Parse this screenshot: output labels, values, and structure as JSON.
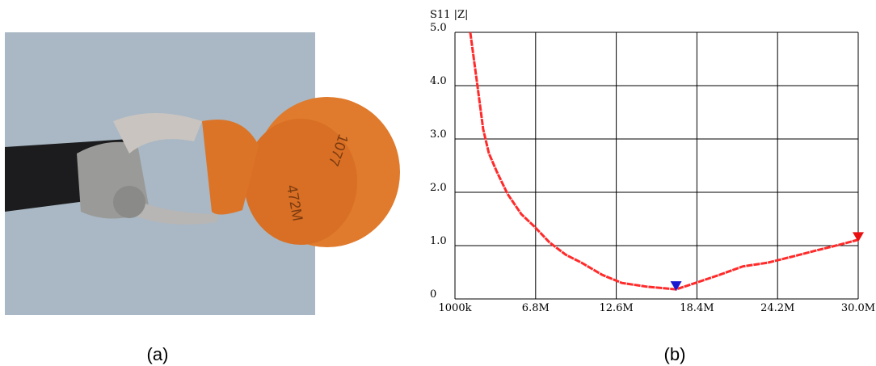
{
  "panel_labels": [
    "(a)",
    "(b)"
  ],
  "chart_data": {
    "type": "line",
    "title": "S11 |Z|",
    "x": [
      2.1,
      2.57,
      3.03,
      3.44,
      4.02,
      4.78,
      5.77,
      6.7,
      7.8,
      8.96,
      10.1,
      11.6,
      13.0,
      14.8,
      16.9,
      18.3,
      20.0,
      21.7,
      23.5,
      25.2,
      27.0,
      28.7,
      30
    ],
    "series": [
      {
        "color": "#ff2a2a",
        "values": [
          5.0,
          4.09,
          3.18,
          2.73,
          2.38,
          1.97,
          1.59,
          1.36,
          1.06,
          0.83,
          0.68,
          0.45,
          0.3,
          0.23,
          0.18,
          0.3,
          0.45,
          0.61,
          0.68,
          0.79,
          0.91,
          1.02,
          1.11
        ]
      }
    ],
    "markers": [
      {
        "x": 16.9,
        "value": 0.18,
        "color": "#1a1ad0"
      },
      {
        "x": 30,
        "value": 1.1,
        "color": "#e81010"
      }
    ],
    "xlim": [
      1,
      30
    ],
    "xticks": [
      {
        "value": 1,
        "label": "1000k"
      },
      {
        "value": 6.8,
        "label": "6.8M"
      },
      {
        "value": 12.6,
        "label": "12.6M"
      },
      {
        "value": 18.4,
        "label": "18.4M"
      },
      {
        "value": 24.2,
        "label": "24.2M"
      },
      {
        "value": 30,
        "label": "30.0M"
      }
    ],
    "ylim": [
      0,
      5
    ],
    "yticks": [
      0,
      {
        "value": 1,
        "label": "1.0"
      },
      {
        "value": 2,
        "label": "2.0"
      },
      {
        "value": 3,
        "label": "3.0"
      },
      {
        "value": 4,
        "label": "4.0"
      },
      {
        "value": 5,
        "label": "5.0"
      }
    ],
    "grid": true
  }
}
